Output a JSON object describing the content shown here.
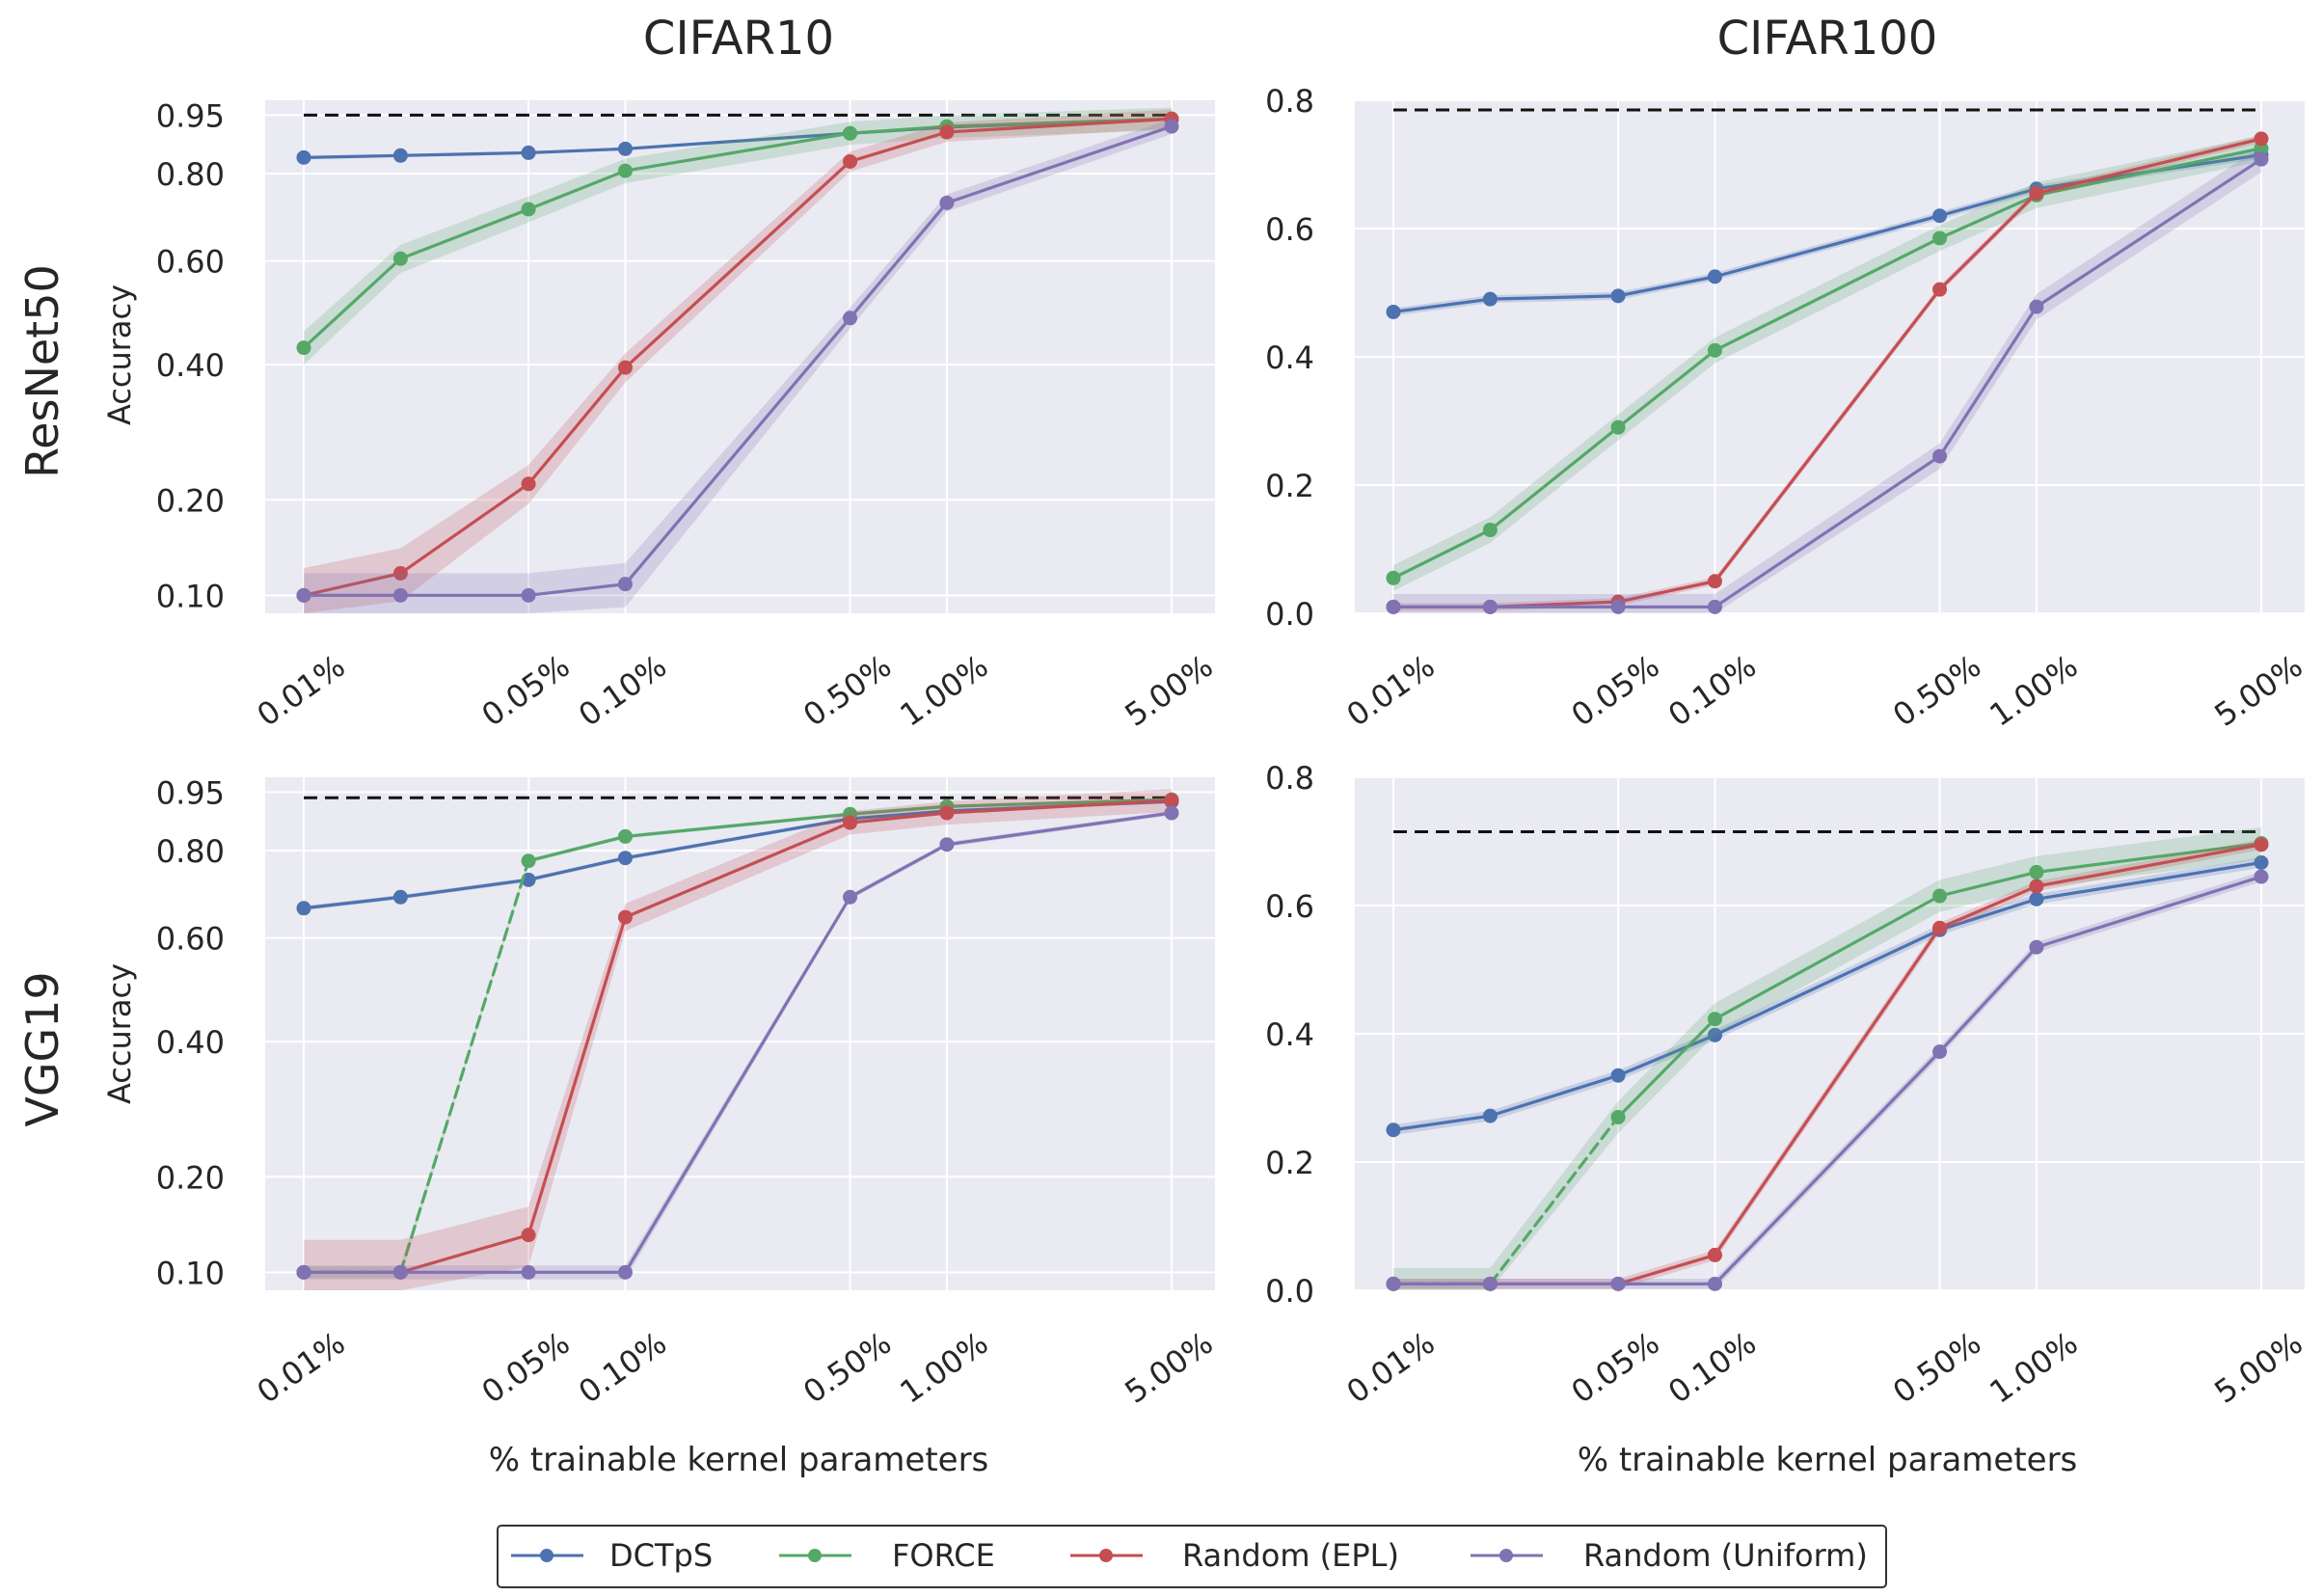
{
  "figure": {
    "column_titles": [
      "CIFAR10",
      "CIFAR100"
    ],
    "row_titles": [
      "ResNet50",
      "VGG19"
    ],
    "ylabel": "Accuracy",
    "xlabel": "% trainable kernel parameters"
  },
  "colors": {
    "panel_bg": "#eaeaf2",
    "grid": "#ffffff",
    "DCTpS": "#4c72b0",
    "FORCE": "#55a868",
    "Random (EPL)": "#c44e52",
    "Random (Uniform)": "#8172b3",
    "baseline": "#111111"
  },
  "legend": {
    "placement": "bottom-center",
    "entries": [
      "DCTpS",
      "FORCE",
      "Random (EPL)",
      "Random (Uniform)"
    ]
  },
  "chart_data": [
    {
      "id": "resnet50-cifar10",
      "type": "line",
      "title": "CIFAR10",
      "row": "ResNet50",
      "xlabel": "",
      "ylabel": "Accuracy",
      "x": [
        0.01,
        0.02,
        0.05,
        0.1,
        0.5,
        1.0,
        5.0
      ],
      "xticks": [
        0.01,
        0.05,
        0.1,
        0.5,
        1.0,
        5.0
      ],
      "xtick_labels": [
        "0.01%",
        "0.05%",
        "0.10%",
        "0.50%",
        "1.00%",
        "5.00%"
      ],
      "yscale": "sqrt",
      "ylim": [
        0.085,
        0.99
      ],
      "yticks": [
        0.1,
        0.2,
        0.4,
        0.6,
        0.8,
        0.95
      ],
      "ytick_labels": [
        "0.10",
        "0.20",
        "0.40",
        "0.60",
        "0.80",
        "0.95"
      ],
      "baseline": 0.95,
      "series": [
        {
          "name": "DCTpS",
          "values": [
            0.84,
            0.845,
            0.852,
            0.862,
            0.902,
            0.918,
            0.94
          ],
          "band": 0.004,
          "dashed_until": 0
        },
        {
          "name": "FORCE",
          "values": [
            0.43,
            0.605,
            0.715,
            0.807,
            0.902,
            0.92,
            0.94
          ],
          "band": 0.03,
          "dashed_until": 0
        },
        {
          "name": "Random (EPL)",
          "values": [
            0.1,
            0.12,
            0.22,
            0.395,
            0.83,
            0.905,
            0.94
          ],
          "band": 0.025,
          "dashed_until": 0
        },
        {
          "name": "Random (Uniform)",
          "values": [
            0.1,
            0.1,
            0.1,
            0.11,
            0.485,
            0.73,
            0.92
          ],
          "band": 0.02,
          "dashed_until": 0
        }
      ]
    },
    {
      "id": "resnet50-cifar100",
      "type": "line",
      "title": "CIFAR100",
      "row": "ResNet50",
      "xlabel": "",
      "ylabel": "",
      "x": [
        0.01,
        0.02,
        0.05,
        0.1,
        0.5,
        1.0,
        5.0
      ],
      "xticks": [
        0.01,
        0.05,
        0.1,
        0.5,
        1.0,
        5.0
      ],
      "xtick_labels": [
        "0.01%",
        "0.05%",
        "0.10%",
        "0.50%",
        "1.00%",
        "5.00%"
      ],
      "yscale": "linear",
      "ylim": [
        0.0,
        0.8
      ],
      "yticks": [
        0.0,
        0.2,
        0.4,
        0.6,
        0.8
      ],
      "ytick_labels": [
        "0.0",
        "0.2",
        "0.4",
        "0.6",
        "0.8"
      ],
      "baseline": 0.785,
      "series": [
        {
          "name": "DCTpS",
          "values": [
            0.47,
            0.49,
            0.495,
            0.525,
            0.62,
            0.662,
            0.715
          ],
          "band": 0.006,
          "dashed_until": 0
        },
        {
          "name": "FORCE",
          "values": [
            0.055,
            0.13,
            0.29,
            0.41,
            0.585,
            0.652,
            0.725
          ],
          "band": 0.02,
          "dashed_until": 0
        },
        {
          "name": "Random (EPL)",
          "values": [
            0.01,
            0.01,
            0.018,
            0.05,
            0.505,
            0.655,
            0.74
          ],
          "band": 0.006,
          "dashed_until": 0
        },
        {
          "name": "Random (Uniform)",
          "values": [
            0.01,
            0.01,
            0.01,
            0.01,
            0.245,
            0.478,
            0.708
          ],
          "band": 0.02,
          "dashed_until": 0
        }
      ]
    },
    {
      "id": "vgg19-cifar10",
      "type": "line",
      "title": "CIFAR10",
      "row": "VGG19",
      "xlabel": "% trainable kernel parameters",
      "ylabel": "Accuracy",
      "x": [
        0.01,
        0.02,
        0.05,
        0.1,
        0.5,
        1.0,
        5.0
      ],
      "xticks": [
        0.01,
        0.05,
        0.1,
        0.5,
        1.0,
        5.0
      ],
      "xtick_labels": [
        "0.01%",
        "0.05%",
        "0.10%",
        "0.50%",
        "1.00%",
        "5.00%"
      ],
      "yscale": "sqrt",
      "ylim": [
        0.085,
        0.99
      ],
      "yticks": [
        0.1,
        0.2,
        0.4,
        0.6,
        0.8,
        0.95
      ],
      "ytick_labels": [
        "0.10",
        "0.20",
        "0.40",
        "0.60",
        "0.80",
        "0.95"
      ],
      "baseline": 0.935,
      "series": [
        {
          "name": "DCTpS",
          "values": [
            0.665,
            0.69,
            0.73,
            0.782,
            0.88,
            0.9,
            0.925
          ],
          "band": 0.005,
          "dashed_until": 0
        },
        {
          "name": "FORCE",
          "values": [
            0.1,
            0.1,
            0.775,
            0.835,
            0.892,
            0.912,
            0.93
          ],
          "band": 0.005,
          "dashed_until": 2
        },
        {
          "name": "Random (EPL)",
          "values": [
            0.1,
            0.1,
            0.135,
            0.645,
            0.87,
            0.895,
            0.928
          ],
          "band": 0.03,
          "dashed_until": 0
        },
        {
          "name": "Random (Uniform)",
          "values": [
            0.1,
            0.1,
            0.1,
            0.1,
            0.69,
            0.815,
            0.895
          ],
          "band": 0.006,
          "dashed_until": 0
        }
      ]
    },
    {
      "id": "vgg19-cifar100",
      "type": "line",
      "title": "CIFAR100",
      "row": "VGG19",
      "xlabel": "% trainable kernel parameters",
      "ylabel": "",
      "x": [
        0.01,
        0.02,
        0.05,
        0.1,
        0.5,
        1.0,
        5.0
      ],
      "xticks": [
        0.01,
        0.05,
        0.1,
        0.5,
        1.0,
        5.0
      ],
      "xtick_labels": [
        "0.01%",
        "0.05%",
        "0.10%",
        "0.50%",
        "1.00%",
        "5.00%"
      ],
      "yscale": "linear",
      "ylim": [
        0.0,
        0.8
      ],
      "yticks": [
        0.0,
        0.2,
        0.4,
        0.6,
        0.8
      ],
      "ytick_labels": [
        "0.0",
        "0.2",
        "0.4",
        "0.6",
        "0.8"
      ],
      "baseline": 0.715,
      "series": [
        {
          "name": "DCTpS",
          "values": [
            0.25,
            0.272,
            0.335,
            0.398,
            0.562,
            0.61,
            0.667
          ],
          "band": 0.008,
          "dashed_until": 0
        },
        {
          "name": "FORCE",
          "values": [
            0.01,
            0.01,
            0.27,
            0.423,
            0.615,
            0.652,
            0.697
          ],
          "band": 0.025,
          "dashed_until": 2
        },
        {
          "name": "Random (EPL)",
          "values": [
            0.01,
            0.01,
            0.01,
            0.055,
            0.565,
            0.63,
            0.695
          ],
          "band": 0.008,
          "dashed_until": 0
        },
        {
          "name": "Random (Uniform)",
          "values": [
            0.01,
            0.01,
            0.01,
            0.01,
            0.372,
            0.535,
            0.645
          ],
          "band": 0.008,
          "dashed_until": 0
        }
      ]
    }
  ]
}
